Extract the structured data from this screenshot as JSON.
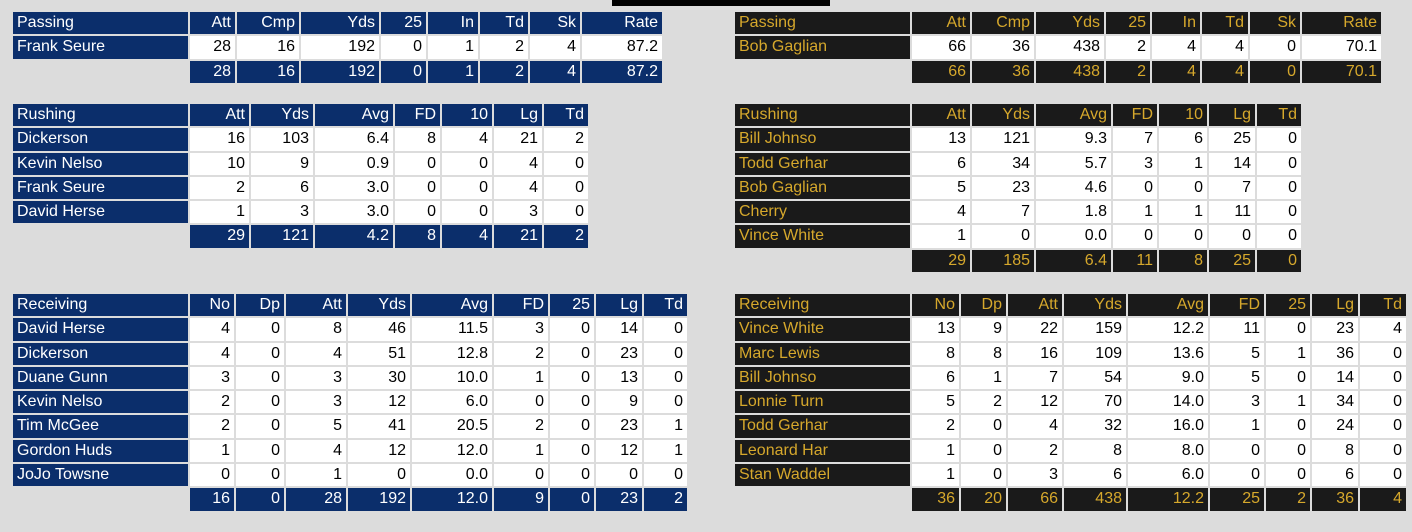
{
  "left": {
    "passing": {
      "headers": [
        "Passing",
        "Att",
        "Cmp",
        "Yds",
        "25",
        "In",
        "Td",
        "Sk",
        "Rate"
      ],
      "rows": [
        [
          "Frank Seure",
          "28",
          "16",
          "192",
          "0",
          "1",
          "2",
          "4",
          "87.2"
        ]
      ],
      "totals": [
        "28",
        "16",
        "192",
        "0",
        "1",
        "2",
        "4",
        "87.2"
      ]
    },
    "rushing": {
      "headers": [
        "Rushing",
        "Att",
        "Yds",
        "Avg",
        "FD",
        "10",
        "Lg",
        "Td"
      ],
      "rows": [
        [
          "Dickerson",
          "16",
          "103",
          "6.4",
          "8",
          "4",
          "21",
          "2"
        ],
        [
          "Kevin Nelso",
          "10",
          "9",
          "0.9",
          "0",
          "0",
          "4",
          "0"
        ],
        [
          "Frank Seure",
          "2",
          "6",
          "3.0",
          "0",
          "0",
          "4",
          "0"
        ],
        [
          "David Herse",
          "1",
          "3",
          "3.0",
          "0",
          "0",
          "3",
          "0"
        ]
      ],
      "totals": [
        "29",
        "121",
        "4.2",
        "8",
        "4",
        "21",
        "2"
      ]
    },
    "receiving": {
      "headers": [
        "Receiving",
        "No",
        "Dp",
        "Att",
        "Yds",
        "Avg",
        "FD",
        "25",
        "Lg",
        "Td"
      ],
      "rows": [
        [
          "David Herse",
          "4",
          "0",
          "8",
          "46",
          "11.5",
          "3",
          "0",
          "14",
          "0"
        ],
        [
          "Dickerson",
          "4",
          "0",
          "4",
          "51",
          "12.8",
          "2",
          "0",
          "23",
          "0"
        ],
        [
          "Duane Gunn",
          "3",
          "0",
          "3",
          "30",
          "10.0",
          "1",
          "0",
          "13",
          "0"
        ],
        [
          "Kevin Nelso",
          "2",
          "0",
          "3",
          "12",
          "6.0",
          "0",
          "0",
          "9",
          "0"
        ],
        [
          "Tim McGee",
          "2",
          "0",
          "5",
          "41",
          "20.5",
          "2",
          "0",
          "23",
          "1"
        ],
        [
          "Gordon Huds",
          "1",
          "0",
          "4",
          "12",
          "12.0",
          "1",
          "0",
          "12",
          "1"
        ],
        [
          "JoJo Towsne",
          "0",
          "0",
          "1",
          "0",
          "0.0",
          "0",
          "0",
          "0",
          "0"
        ]
      ],
      "totals": [
        "16",
        "0",
        "28",
        "192",
        "12.0",
        "9",
        "0",
        "23",
        "2"
      ]
    }
  },
  "right": {
    "passing": {
      "headers": [
        "Passing",
        "Att",
        "Cmp",
        "Yds",
        "25",
        "In",
        "Td",
        "Sk",
        "Rate"
      ],
      "rows": [
        [
          "Bob Gaglian",
          "66",
          "36",
          "438",
          "2",
          "4",
          "4",
          "0",
          "70.1"
        ]
      ],
      "totals": [
        "66",
        "36",
        "438",
        "2",
        "4",
        "4",
        "0",
        "70.1"
      ]
    },
    "rushing": {
      "headers": [
        "Rushing",
        "Att",
        "Yds",
        "Avg",
        "FD",
        "10",
        "Lg",
        "Td"
      ],
      "rows": [
        [
          "Bill Johnso",
          "13",
          "121",
          "9.3",
          "7",
          "6",
          "25",
          "0"
        ],
        [
          "Todd Gerhar",
          "6",
          "34",
          "5.7",
          "3",
          "1",
          "14",
          "0"
        ],
        [
          "Bob Gaglian",
          "5",
          "23",
          "4.6",
          "0",
          "0",
          "7",
          "0"
        ],
        [
          "Cherry",
          "4",
          "7",
          "1.8",
          "1",
          "1",
          "11",
          "0"
        ],
        [
          "Vince White",
          "1",
          "0",
          "0.0",
          "0",
          "0",
          "0",
          "0"
        ]
      ],
      "totals": [
        "29",
        "185",
        "6.4",
        "11",
        "8",
        "25",
        "0"
      ]
    },
    "receiving": {
      "headers": [
        "Receiving",
        "No",
        "Dp",
        "Att",
        "Yds",
        "Avg",
        "FD",
        "25",
        "Lg",
        "Td"
      ],
      "rows": [
        [
          "Vince White",
          "13",
          "9",
          "22",
          "159",
          "12.2",
          "11",
          "0",
          "23",
          "4"
        ],
        [
          "Marc Lewis",
          "8",
          "8",
          "16",
          "109",
          "13.6",
          "5",
          "1",
          "36",
          "0"
        ],
        [
          "Bill Johnso",
          "6",
          "1",
          "7",
          "54",
          "9.0",
          "5",
          "0",
          "14",
          "0"
        ],
        [
          "Lonnie Turn",
          "5",
          "2",
          "12",
          "70",
          "14.0",
          "3",
          "1",
          "34",
          "0"
        ],
        [
          "Todd Gerhar",
          "2",
          "0",
          "4",
          "32",
          "16.0",
          "1",
          "0",
          "24",
          "0"
        ],
        [
          "Leonard Har",
          "1",
          "0",
          "2",
          "8",
          "8.0",
          "0",
          "0",
          "8",
          "0"
        ],
        [
          "Stan Waddel",
          "1",
          "0",
          "3",
          "6",
          "6.0",
          "0",
          "0",
          "6",
          "0"
        ]
      ],
      "totals": [
        "36",
        "20",
        "66",
        "438",
        "12.2",
        "25",
        "2",
        "36",
        "4"
      ]
    }
  }
}
